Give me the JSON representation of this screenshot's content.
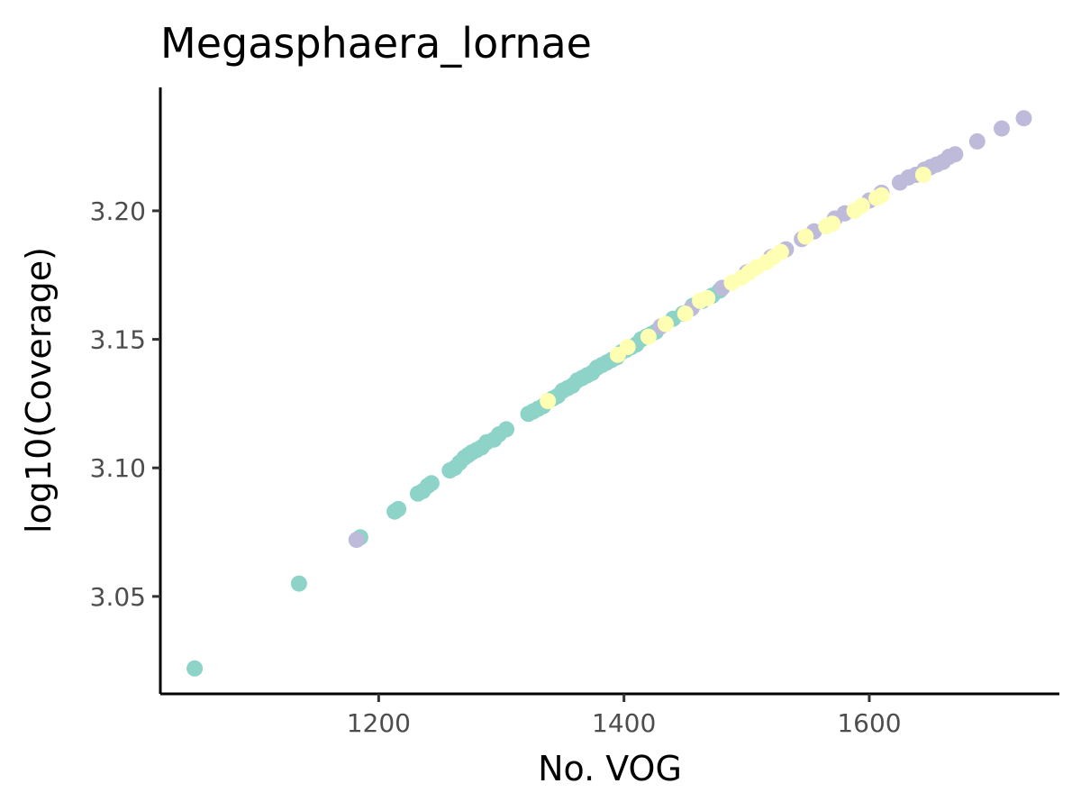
{
  "chart_data": {
    "type": "scatter",
    "title": "Megasphaera_lornae",
    "xlabel": "No. VOG",
    "ylabel": "log10(Coverage)",
    "xlim": [
      1022,
      1755
    ],
    "ylim": [
      3.0121,
      3.248
    ],
    "x_ticks": [
      1200,
      1400,
      1600
    ],
    "y_ticks": [
      3.05,
      3.1,
      3.15,
      3.2
    ],
    "x_tick_labels": [
      "1200",
      "1400",
      "1600"
    ],
    "y_tick_labels": [
      "3.05",
      "3.10",
      "3.15",
      "3.20"
    ],
    "grid": false,
    "legend": "none",
    "colors": {
      "teal": "#8dd3c7",
      "lavender": "#bebada",
      "yellow": "#ffffb3"
    },
    "series": [
      {
        "color": "#8dd3c7",
        "points": [
          [
            1050,
            3.022
          ],
          [
            1135,
            3.055
          ],
          [
            1185,
            3.073
          ],
          [
            1213,
            3.083
          ],
          [
            1216,
            3.084
          ],
          [
            1232,
            3.09
          ],
          [
            1236,
            3.091
          ],
          [
            1240,
            3.093
          ],
          [
            1243,
            3.094
          ],
          [
            1258,
            3.099
          ],
          [
            1262,
            3.1
          ],
          [
            1266,
            3.102
          ],
          [
            1270,
            3.104
          ],
          [
            1273,
            3.105
          ],
          [
            1276,
            3.106
          ],
          [
            1280,
            3.107
          ],
          [
            1284,
            3.108
          ],
          [
            1288,
            3.11
          ],
          [
            1294,
            3.111
          ],
          [
            1298,
            3.113
          ],
          [
            1304,
            3.115
          ],
          [
            1322,
            3.121
          ],
          [
            1326,
            3.122
          ],
          [
            1330,
            3.123
          ],
          [
            1334,
            3.124
          ],
          [
            1338,
            3.126
          ],
          [
            1342,
            3.127
          ],
          [
            1346,
            3.128
          ],
          [
            1350,
            3.13
          ],
          [
            1354,
            3.131
          ],
          [
            1358,
            3.132
          ],
          [
            1362,
            3.134
          ],
          [
            1366,
            3.135
          ],
          [
            1370,
            3.136
          ],
          [
            1374,
            3.137
          ],
          [
            1378,
            3.139
          ],
          [
            1382,
            3.14
          ],
          [
            1386,
            3.141
          ],
          [
            1390,
            3.142
          ],
          [
            1394,
            3.143
          ],
          [
            1398,
            3.145
          ],
          [
            1402,
            3.146
          ],
          [
            1406,
            3.147
          ],
          [
            1410,
            3.148
          ],
          [
            1414,
            3.15
          ],
          [
            1418,
            3.151
          ],
          [
            1422,
            3.152
          ],
          [
            1426,
            3.153
          ],
          [
            1440,
            3.158
          ],
          [
            1448,
            3.16
          ],
          [
            1456,
            3.163
          ],
          [
            1464,
            3.165
          ],
          [
            1472,
            3.167
          ],
          [
            1478,
            3.169
          ]
        ]
      },
      {
        "color": "#bebada",
        "points": [
          [
            1182,
            3.072
          ],
          [
            1430,
            3.155
          ],
          [
            1455,
            3.162
          ],
          [
            1480,
            3.17
          ],
          [
            1500,
            3.176
          ],
          [
            1520,
            3.182
          ],
          [
            1532,
            3.185
          ],
          [
            1545,
            3.189
          ],
          [
            1555,
            3.192
          ],
          [
            1572,
            3.197
          ],
          [
            1580,
            3.199
          ],
          [
            1600,
            3.204
          ],
          [
            1610,
            3.207
          ],
          [
            1625,
            3.211
          ],
          [
            1632,
            3.213
          ],
          [
            1638,
            3.214
          ],
          [
            1645,
            3.216
          ],
          [
            1650,
            3.217
          ],
          [
            1655,
            3.218
          ],
          [
            1660,
            3.219
          ],
          [
            1665,
            3.221
          ],
          [
            1670,
            3.222
          ],
          [
            1688,
            3.227
          ],
          [
            1708,
            3.232
          ],
          [
            1726,
            3.236
          ]
        ]
      },
      {
        "color": "#ffffb3",
        "points": [
          [
            1338,
            3.126
          ],
          [
            1395,
            3.144
          ],
          [
            1403,
            3.147
          ],
          [
            1420,
            3.151
          ],
          [
            1434,
            3.156
          ],
          [
            1450,
            3.16
          ],
          [
            1462,
            3.165
          ],
          [
            1468,
            3.166
          ],
          [
            1488,
            3.172
          ],
          [
            1496,
            3.174
          ],
          [
            1502,
            3.176
          ],
          [
            1508,
            3.178
          ],
          [
            1516,
            3.18
          ],
          [
            1522,
            3.182
          ],
          [
            1528,
            3.184
          ],
          [
            1548,
            3.19
          ],
          [
            1565,
            3.194
          ],
          [
            1570,
            3.195
          ],
          [
            1588,
            3.2
          ],
          [
            1594,
            3.202
          ],
          [
            1606,
            3.205
          ],
          [
            1610,
            3.206
          ],
          [
            1644,
            3.214
          ]
        ]
      }
    ]
  }
}
